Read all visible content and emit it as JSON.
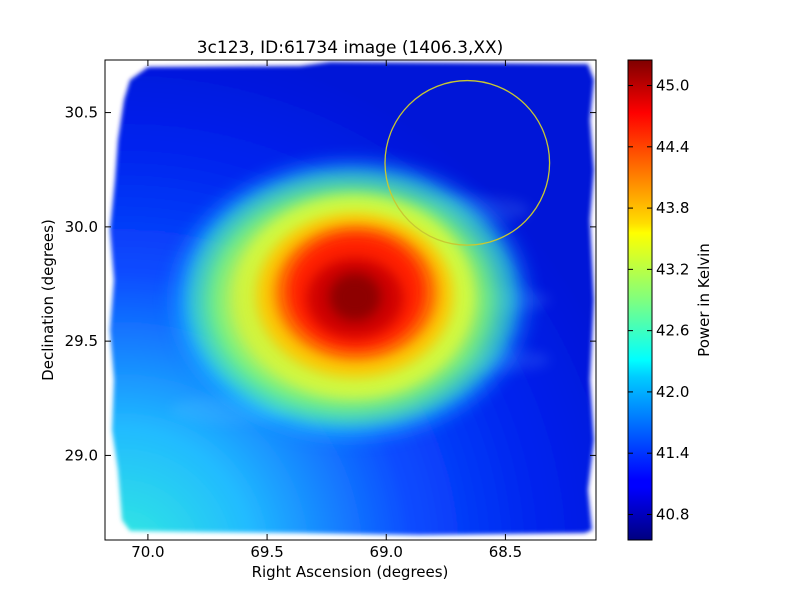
{
  "chart_data": {
    "type": "heatmap",
    "title": "3c123, ID:61734 image (1406.3,XX)",
    "xlabel": "Right Ascension (degrees)",
    "ylabel": "Declination (degrees)",
    "x_inverted": true,
    "xlim": [
      70.18,
      68.12
    ],
    "ylim": [
      28.63,
      30.73
    ],
    "xticks": [
      70.0,
      69.5,
      69.0,
      68.5
    ],
    "xtick_labels": [
      "70.0",
      "69.5",
      "69.0",
      "68.5"
    ],
    "yticks": [
      29.0,
      29.5,
      30.0,
      30.5
    ],
    "ytick_labels": [
      "29.0",
      "29.5",
      "30.0",
      "30.5"
    ],
    "colorbar": {
      "label": "Power in Kelvin",
      "range": [
        40.55,
        45.25
      ],
      "ticks": [
        40.8,
        41.4,
        42.0,
        42.6,
        43.2,
        43.8,
        44.4,
        45.0
      ],
      "tick_labels": [
        "40.8",
        "41.4",
        "42.0",
        "42.6",
        "43.2",
        "43.8",
        "44.4",
        "45.0"
      ],
      "colormap": "jet"
    },
    "field": {
      "peak": {
        "ra": 69.22,
        "dec": 29.71,
        "value": 45.2
      },
      "background_value": 40.9,
      "gradient_low_value": 42.0
    },
    "marker_circle": {
      "ra": 68.66,
      "dec": 30.28,
      "radius_deg": 0.36,
      "color": "#c8c832"
    }
  }
}
